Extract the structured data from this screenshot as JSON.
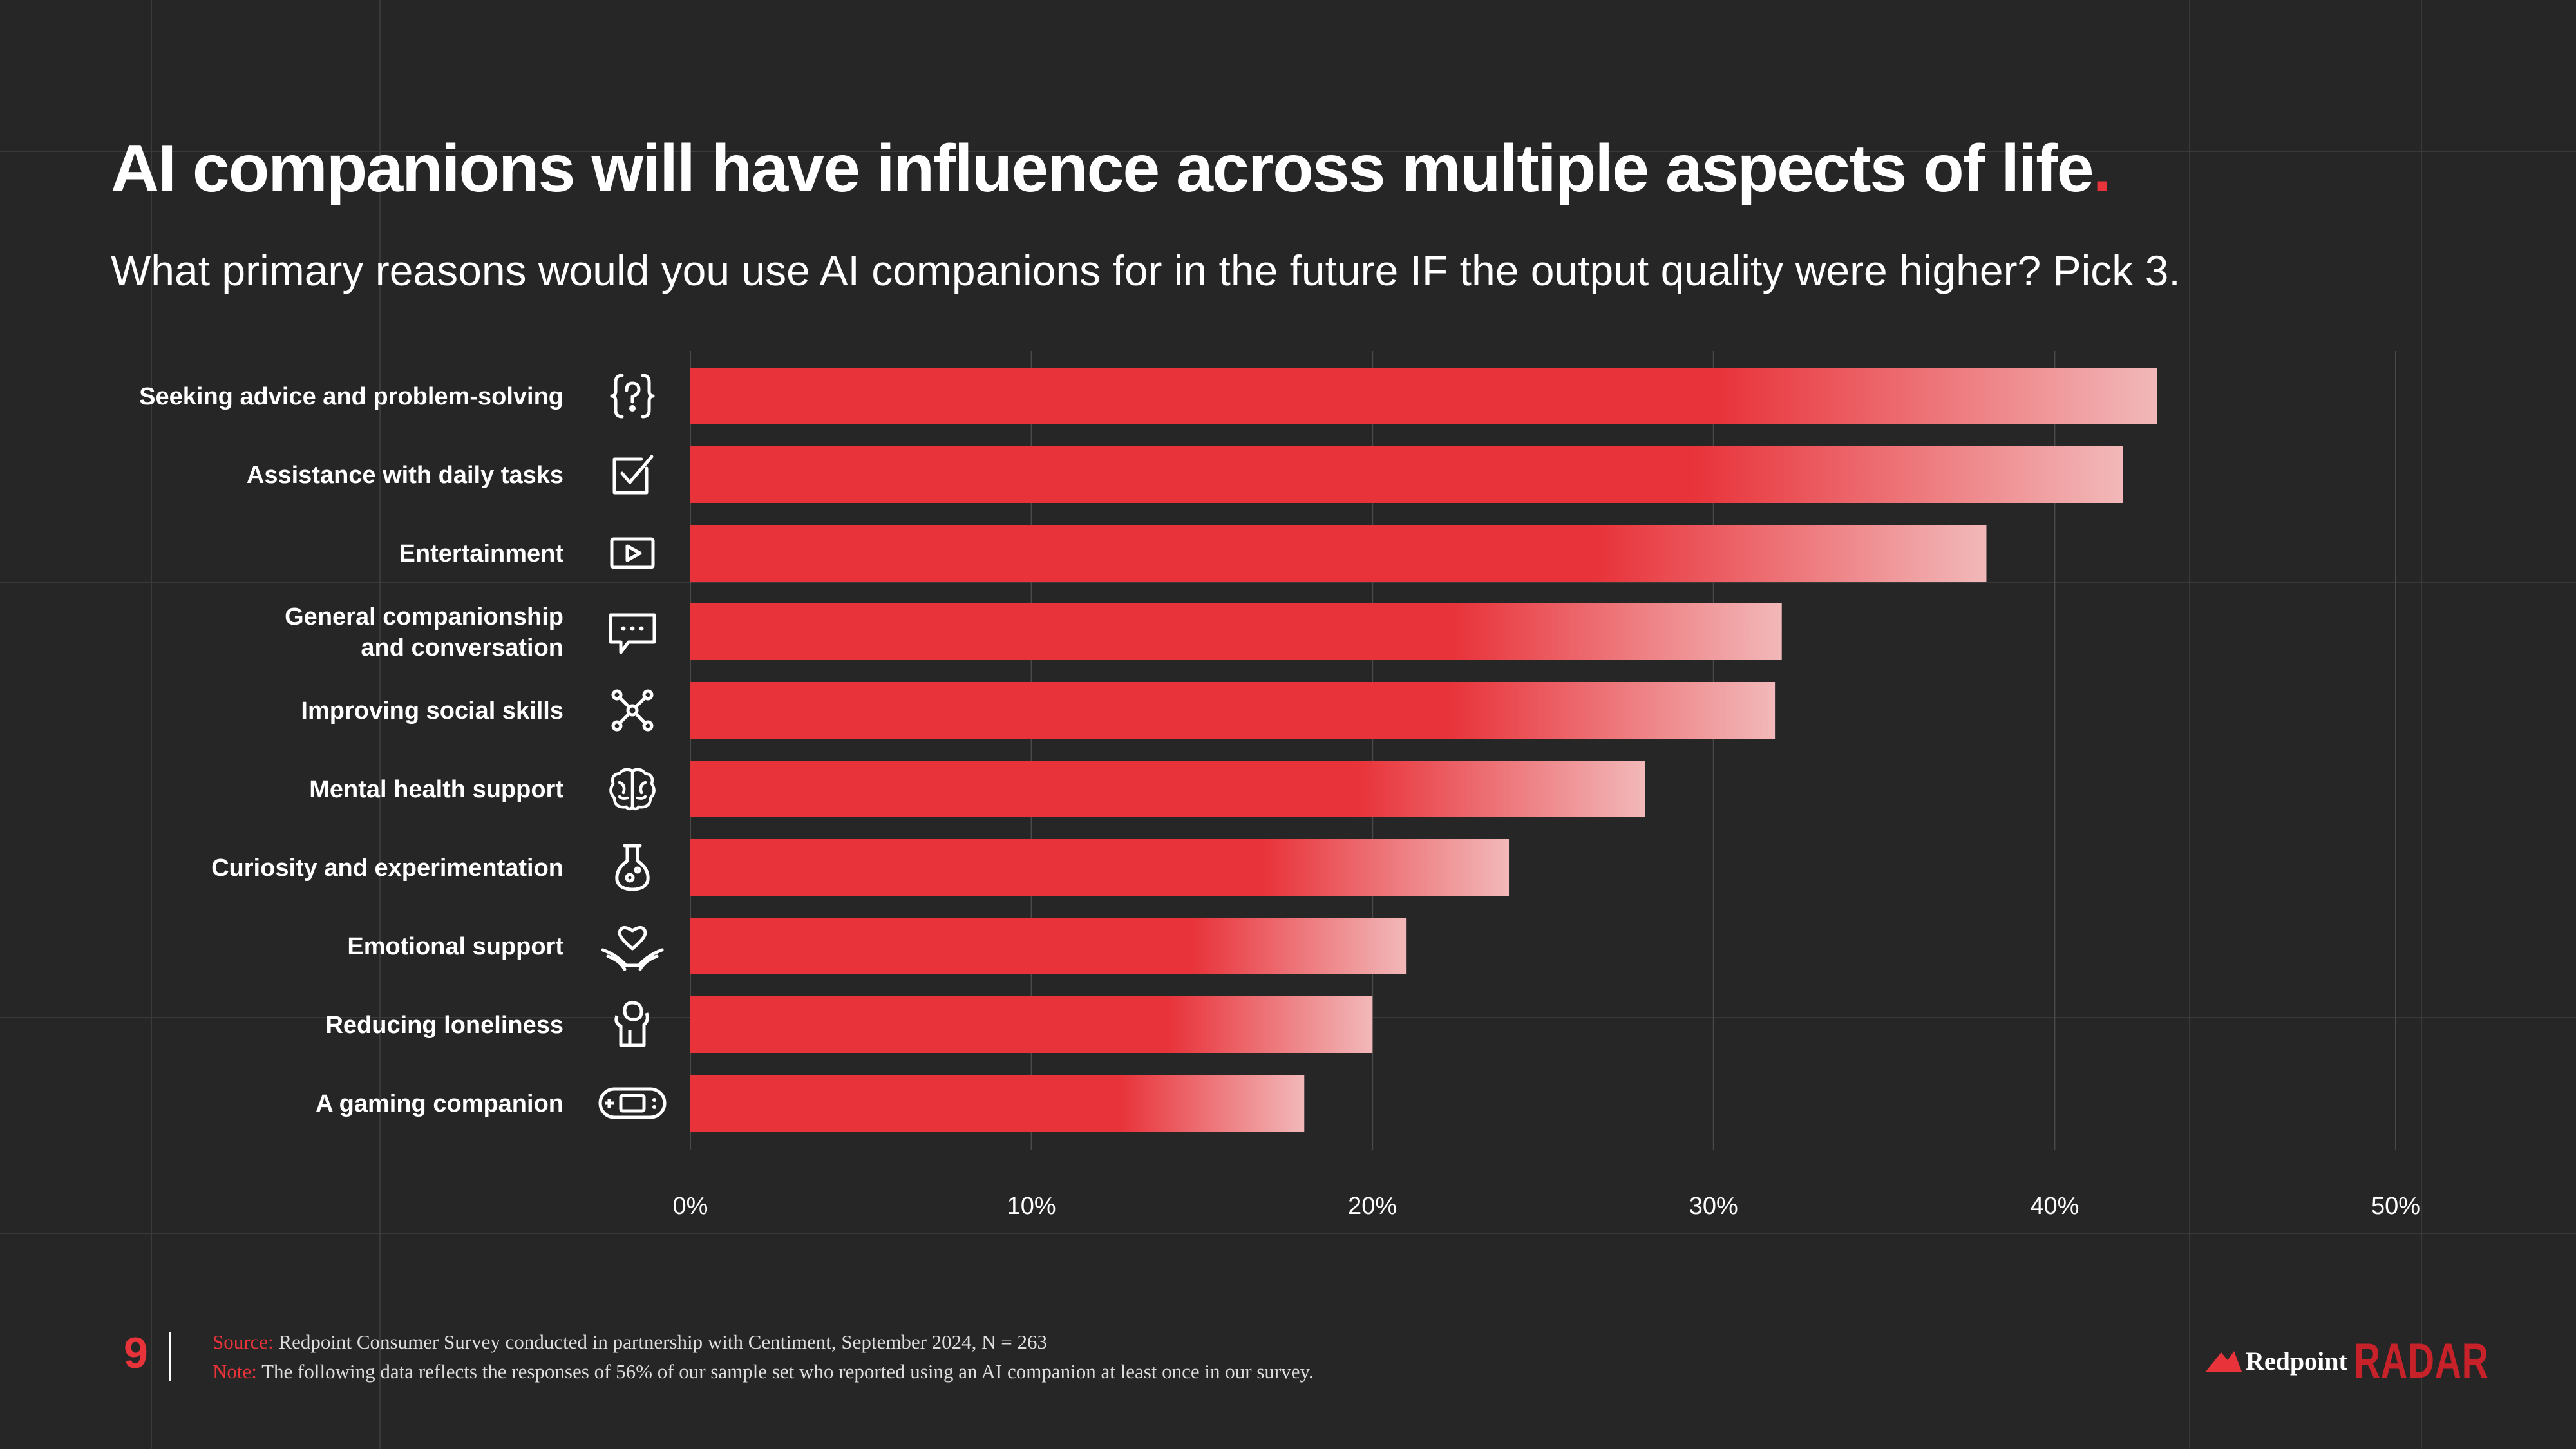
{
  "slide": {
    "title": "AI companions will have influence across multiple aspects of life",
    "title_period": ".",
    "subtitle": "What primary reasons would you use AI companions for in the future IF the output quality were higher? Pick 3.",
    "page_number": "9"
  },
  "footer": {
    "source_key": "Source:",
    "source_text": "Redpoint Consumer Survey conducted in partnership with Centiment, September 2024, N = 263",
    "note_key": "Note:",
    "note_text": "The following data reflects the responses of 56% of our sample set who reported using an AI companion at least once in our survey.",
    "brand_name": "Redpoint",
    "brand_product": "RADAR"
  },
  "colors": {
    "background": "#262626",
    "accent": "#e8333a",
    "bar_light": "#f2b8b9",
    "text": "#ffffff"
  },
  "chart_data": {
    "type": "bar",
    "orientation": "horizontal",
    "title": "AI companions will have influence across multiple aspects of life.",
    "xlabel": "",
    "ylabel": "",
    "xlim": [
      0,
      50
    ],
    "x_ticks": [
      "0%",
      "10%",
      "20%",
      "30%",
      "40%",
      "50%"
    ],
    "grid": true,
    "categories": [
      {
        "label": [
          "Seeking advice and problem-solving"
        ],
        "icon": "question-bubble-icon",
        "value": 43
      },
      {
        "label": [
          "Assistance with daily tasks"
        ],
        "icon": "checkbox-icon",
        "value": 42
      },
      {
        "label": [
          "Entertainment"
        ],
        "icon": "play-button-icon",
        "value": 38
      },
      {
        "label": [
          "General companionship",
          "and conversation"
        ],
        "icon": "chat-bubble-icon",
        "value": 32
      },
      {
        "label": [
          "Improving social skills"
        ],
        "icon": "network-icon",
        "value": 31.8
      },
      {
        "label": [
          "Mental health support"
        ],
        "icon": "brain-icon",
        "value": 28
      },
      {
        "label": [
          "Curiosity and experimentation"
        ],
        "icon": "flask-icon",
        "value": 24
      },
      {
        "label": [
          "Emotional support"
        ],
        "icon": "heart-hands-icon",
        "value": 21
      },
      {
        "label": [
          "Reducing loneliness"
        ],
        "icon": "person-icon",
        "value": 20
      },
      {
        "label": [
          "A gaming companion"
        ],
        "icon": "gamepad-icon",
        "value": 18
      }
    ]
  }
}
